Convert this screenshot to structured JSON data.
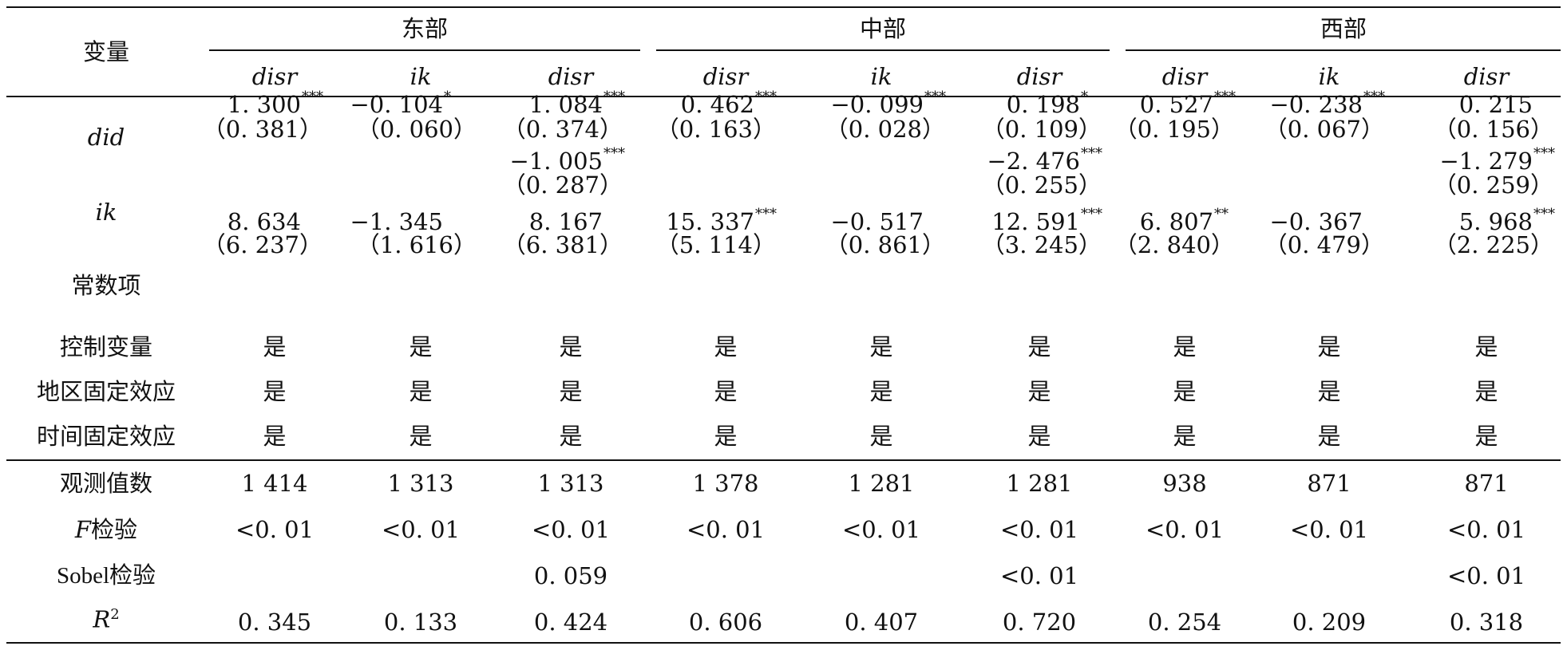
{
  "header": {
    "var_label": "变量",
    "groups": [
      "东部",
      "中部",
      "西部"
    ],
    "cols": [
      "disr",
      "ik",
      "disr",
      "disr",
      "ik",
      "disr",
      "disr",
      "ik",
      "disr"
    ]
  },
  "rows": {
    "did": {
      "label": "did",
      "coef": [
        [
          "1. 300",
          "***"
        ],
        [
          "−0. 104",
          "*"
        ],
        [
          "1. 084",
          "***"
        ],
        [
          "0. 462",
          "***"
        ],
        [
          "−0. 099",
          "***"
        ],
        [
          "0. 198",
          "*"
        ],
        [
          "0. 527",
          "***"
        ],
        [
          "−0. 238",
          "***"
        ],
        [
          "0. 215",
          ""
        ]
      ],
      "se": [
        "（0. 381）",
        "（0. 060）",
        "（0. 374）",
        "（0. 163）",
        "（0. 028）",
        "（0. 109）",
        "（0. 195）",
        "（0. 067）",
        "（0. 156）"
      ]
    },
    "ik": {
      "label": "ik",
      "coef": [
        [
          "",
          ""
        ],
        [
          "",
          ""
        ],
        [
          "−1. 005",
          "***"
        ],
        [
          "",
          ""
        ],
        [
          "",
          ""
        ],
        [
          "−2. 476",
          "***"
        ],
        [
          "",
          ""
        ],
        [
          "",
          ""
        ],
        [
          "−1. 279",
          "***"
        ]
      ],
      "se": [
        "",
        "",
        "（0. 287）",
        "",
        "",
        "（0. 255）",
        "",
        "",
        "（0. 259）"
      ]
    },
    "const": {
      "label": "常数项",
      "coef": [
        [
          "8. 634",
          ""
        ],
        [
          "−1. 345",
          ""
        ],
        [
          "8. 167",
          ""
        ],
        [
          "15. 337",
          "***"
        ],
        [
          "−0. 517",
          ""
        ],
        [
          "12. 591",
          "***"
        ],
        [
          "6. 807",
          "**"
        ],
        [
          "−0. 367",
          ""
        ],
        [
          "5. 968",
          "***"
        ]
      ],
      "se": [
        "（6. 237）",
        "（1. 616）",
        "（6. 381）",
        "（5. 114）",
        "（0. 861）",
        "（3. 245）",
        "（2. 840）",
        "（0. 479）",
        "（2. 225）"
      ]
    },
    "controls": {
      "label": "控制变量",
      "values": [
        "是",
        "是",
        "是",
        "是",
        "是",
        "是",
        "是",
        "是",
        "是"
      ]
    },
    "region_fe": {
      "label": "地区固定效应",
      "values": [
        "是",
        "是",
        "是",
        "是",
        "是",
        "是",
        "是",
        "是",
        "是"
      ]
    },
    "time_fe": {
      "label": "时间固定效应",
      "values": [
        "是",
        "是",
        "是",
        "是",
        "是",
        "是",
        "是",
        "是",
        "是"
      ]
    },
    "obs": {
      "label": "观测值数",
      "values": [
        "1 414",
        "1 313",
        "1 313",
        "1 378",
        "1 281",
        "1 281",
        "938",
        "871",
        "871"
      ]
    },
    "ftest": {
      "label_italic": "F",
      "label_rest": "检验",
      "values": [
        "<0. 01",
        "<0. 01",
        "<0. 01",
        "<0. 01",
        "<0. 01",
        "<0. 01",
        "<0. 01",
        "<0. 01",
        "<0. 01"
      ]
    },
    "sobel": {
      "label": "Sobel检验",
      "values": [
        "",
        "",
        "0. 059",
        "",
        "",
        "<0. 01",
        "",
        "",
        "<0. 01"
      ]
    },
    "r2": {
      "label_italic": "R",
      "label_sup": "2",
      "values": [
        "0. 345",
        "0. 133",
        "0. 424",
        "0. 606",
        "0. 407",
        "0. 720",
        "0. 254",
        "0. 209",
        "0. 318"
      ]
    }
  }
}
